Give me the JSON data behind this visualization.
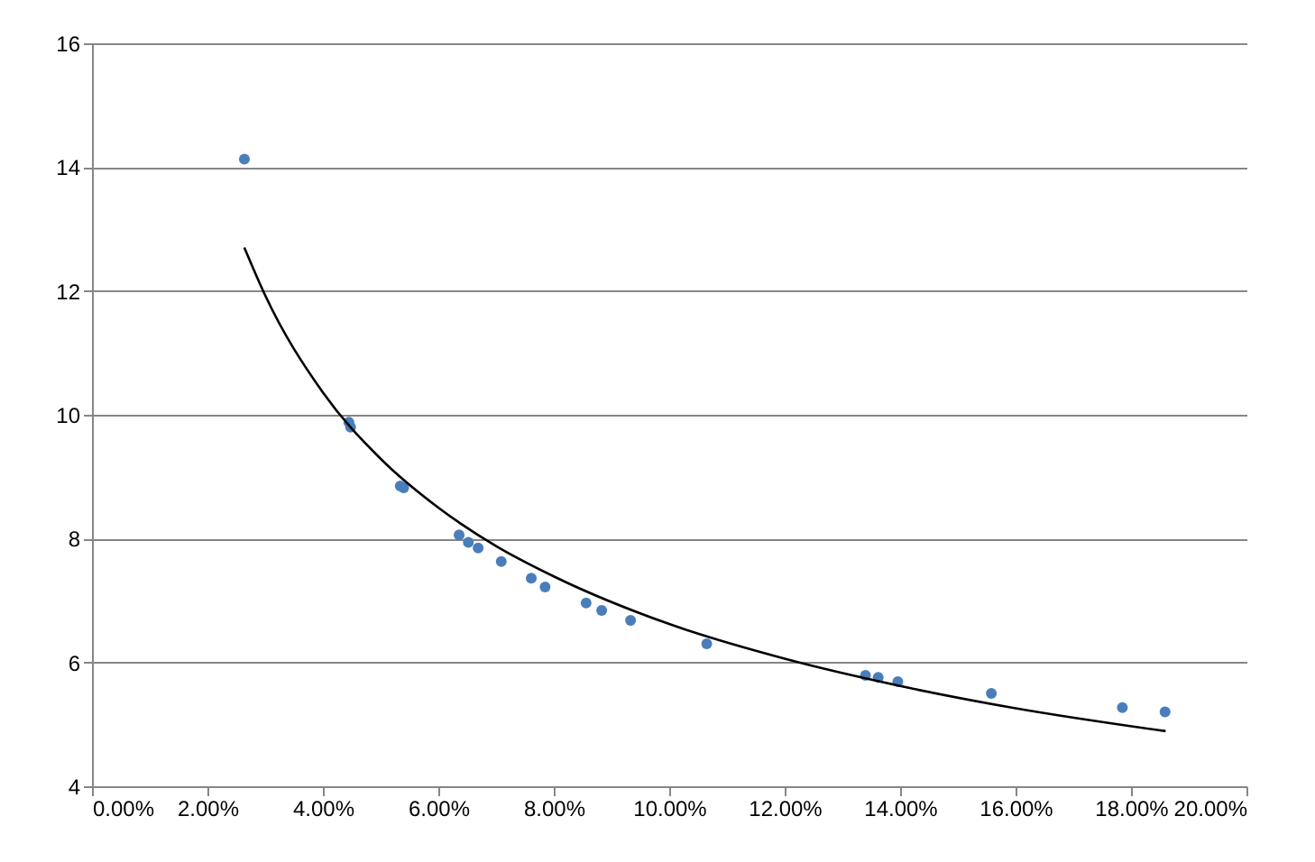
{
  "chart_data": {
    "type": "scatter",
    "marker": "circle",
    "grid": "y",
    "xlim": [
      0,
      20
    ],
    "xticks": [
      {
        "value": 0,
        "label": "0.00%"
      },
      {
        "value": 2,
        "label": "2.00%"
      },
      {
        "value": 4,
        "label": "4.00%"
      },
      {
        "value": 6,
        "label": "6.00%"
      },
      {
        "value": 8,
        "label": "8.00%"
      },
      {
        "value": 10,
        "label": "10.00%"
      },
      {
        "value": 12,
        "label": "12.00%"
      },
      {
        "value": 14,
        "label": "14.00%"
      },
      {
        "value": 16,
        "label": "16.00%"
      },
      {
        "value": 18,
        "label": "18.00%"
      },
      {
        "value": 20,
        "label": "20.00%"
      }
    ],
    "ylim": [
      4,
      16
    ],
    "yticks": [
      4,
      6,
      8,
      10,
      12,
      14,
      16
    ],
    "series": [
      {
        "color": "#4a7ebb",
        "x": [
          2.64,
          4.45,
          4.48,
          5.34,
          5.4,
          6.36,
          6.52,
          6.69,
          7.09,
          7.61,
          7.85,
          8.56,
          8.83,
          9.33,
          10.65,
          13.4,
          13.62,
          13.96,
          15.58,
          17.85,
          18.59
        ],
        "values": [
          14.13,
          9.88,
          9.8,
          8.85,
          8.82,
          8.06,
          7.94,
          7.85,
          7.63,
          7.36,
          7.22,
          6.96,
          6.84,
          6.68,
          6.3,
          5.79,
          5.76,
          5.69,
          5.5,
          5.27,
          5.2
        ]
      },
      {
        "type": "line",
        "marker": "none",
        "color": "#000000",
        "line_style": "solid",
        "x": [
          2.64,
          3,
          4,
          5,
          6,
          7,
          8,
          10,
          12,
          14,
          16,
          18.6
        ],
        "values": [
          12.7,
          11.93,
          10.36,
          9.29,
          8.5,
          7.88,
          7.39,
          6.62,
          6.06,
          5.62,
          5.26,
          4.89
        ]
      }
    ]
  }
}
